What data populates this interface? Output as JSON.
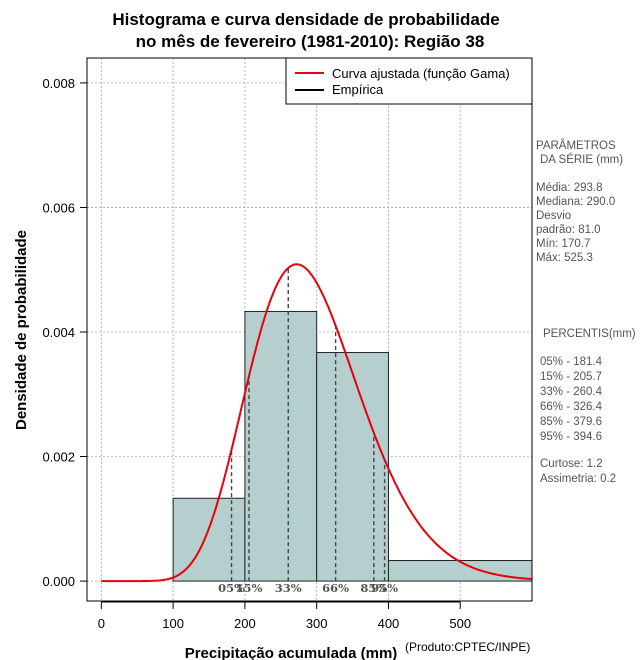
{
  "colors": {
    "bar_fill": "#b5cece",
    "bar_stroke": "#222222",
    "curve": "#e8000b",
    "grid": "#aaaaaa",
    "pct_line": "#444444",
    "side_text": "#555555"
  },
  "chart_data": {
    "type": "histogram",
    "title_line1": "Histograma e curva densidade de probabilidade",
    "title_line2": "no mês de fevereiro (1981-2010): Região 38",
    "xlabel": "Precipitação acumulada (mm)",
    "ylabel": "Densidade de probabilidade",
    "credit": "(Produto:CPTEC/INPE)",
    "xlim": [
      -20,
      600
    ],
    "ylim": [
      -0.00032,
      0.0084
    ],
    "x_ticks": [
      0,
      100,
      200,
      300,
      400,
      500
    ],
    "x_tick_labels": [
      "0",
      "100",
      "200",
      "300",
      "400",
      "500"
    ],
    "y_ticks": [
      0.0,
      0.002,
      0.004,
      0.006,
      0.008
    ],
    "y_tick_labels": [
      "0.000",
      "0.002",
      "0.004",
      "0.006",
      "0.008"
    ],
    "bins": [
      {
        "start": 100,
        "end": 200,
        "density": 0.00133
      },
      {
        "start": 200,
        "end": 300,
        "density": 0.00433
      },
      {
        "start": 300,
        "end": 400,
        "density": 0.00367
      },
      {
        "start": 400,
        "end": 600,
        "density": 0.00033
      }
    ],
    "gamma_fit": {
      "shape": 13.2,
      "scale": 22.3
    },
    "legend": {
      "position": "top-right",
      "entries": [
        {
          "label": "Curva ajustada (função Gama)",
          "color": "#e8000b"
        },
        {
          "label": "Empírica",
          "color": "#000000"
        }
      ]
    },
    "percentile_lines": [
      {
        "label": "05%",
        "x": 181.4
      },
      {
        "label": "15%",
        "x": 205.7
      },
      {
        "label": "33%",
        "x": 260.4
      },
      {
        "label": "66%",
        "x": 326.4
      },
      {
        "label": "85%",
        "x": 379.6
      },
      {
        "label": "95%",
        "x": 394.6
      }
    ]
  },
  "side_panel": {
    "params_heading1": "PARÂMETROS",
    "params_heading2": "DA SÉRIE (mm)",
    "media": "Média:  293.8",
    "mediana": "Mediana:  290.0",
    "desvio1": "Desvio",
    "desvio2": "padrão:  81.0",
    "min": "Mín:  170.7",
    "max": "Máx:  525.3",
    "pct_heading": "PERCENTIS(mm)",
    "p05": "05% -  181.4",
    "p15": "15% -  205.7",
    "p33": "33% -  260.4",
    "p66": "66% -  326.4",
    "p85": "85% -  379.6",
    "p95": "95% -  394.6",
    "curtose": "Curtose:  1.2",
    "assimetria": "Assimetria:  0.2"
  }
}
